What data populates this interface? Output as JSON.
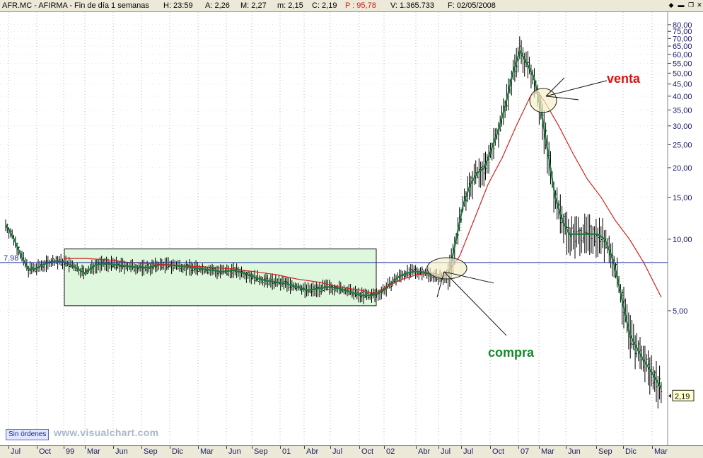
{
  "header": {
    "title": "AFR.MC - AFIRMA - Fin de día 1 semanas",
    "h": "H: 23:59",
    "a": "A: 2,26",
    "max": "M: 2,27",
    "min": "m: 2,15",
    "close": "C: 2,19",
    "p": "P : 95,78",
    "vol": "V: 1.365.733",
    "date": "F: 02/05/2008"
  },
  "footer": {
    "orders_label": "Sin órdenes",
    "brand": "www.visualchart.com"
  },
  "colors": {
    "price_bars": "#000000",
    "fast_ma": "#1a7a3a",
    "slow_ma": "#d42020",
    "hline": "#1f2f9a",
    "box_fill": "#dff7dc",
    "box_stroke": "#1a1a1a",
    "venta": "#e01010",
    "compra": "#128a28",
    "axis_text": "#1a1a6b"
  },
  "chart_data": {
    "type": "line",
    "yscale": "log",
    "ylim": [
      1.75,
      85
    ],
    "yticks": [
      "80,00",
      "75,00",
      "70,00",
      "65,00",
      "60,00",
      "55,00",
      "50,00",
      "45,00",
      "40,00",
      "35,00",
      "30,00",
      "25,00",
      "20,00",
      "15,00",
      "10,00",
      "5,00"
    ],
    "ytick_values": [
      80,
      75,
      70,
      65,
      60,
      55,
      50,
      45,
      40,
      35,
      30,
      25,
      20,
      15,
      10,
      5
    ],
    "hline": {
      "value": 7.98,
      "label": "7.98"
    },
    "last_value": {
      "value": 2.19,
      "label": "2,19"
    },
    "xticks": [
      "Jul",
      "Oct",
      "99",
      "Mar",
      "Jun",
      "Sep",
      "Dic",
      "Mar",
      "Jun",
      "Sep",
      "01",
      "Abr",
      "Jul",
      "Oct",
      "02",
      "Abr",
      "Jul",
      "Jul",
      "Oct",
      "07",
      "Mar",
      "Jun",
      "Sep",
      "Dic",
      "Mar"
    ],
    "range_box": {
      "from": "Mar 99",
      "to": "Oct 01",
      "low": 5.25,
      "high": 9.1
    },
    "annotations": [
      {
        "text": "venta",
        "value": 40,
        "date": "May 07"
      },
      {
        "text": "compra",
        "value": 7.6,
        "date": "Jul"
      }
    ],
    "series": [
      {
        "name": "",
        "role": "fast_ma",
        "x": [
          8,
          20,
          30,
          40,
          50,
          60,
          70,
          80,
          90,
          100,
          110,
          120,
          135,
          150,
          165,
          180,
          195,
          210,
          225,
          240,
          255,
          270,
          285,
          300,
          315,
          330,
          345,
          360,
          375,
          390,
          405,
          420,
          435,
          450,
          465,
          480,
          495,
          510,
          525,
          535,
          545,
          555,
          565,
          575,
          585,
          595,
          605,
          615,
          625,
          635,
          645,
          655,
          665,
          675,
          685,
          695,
          705,
          715,
          725,
          735,
          745,
          755,
          765,
          775,
          785,
          795,
          805,
          815,
          825,
          835,
          845,
          855,
          865,
          870,
          880,
          890,
          900,
          910,
          920,
          930,
          935
        ],
        "values": [
          11.5,
          10,
          8.5,
          7.5,
          7.5,
          7.8,
          8.0,
          8.1,
          8.0,
          7.8,
          7.5,
          7.2,
          7.8,
          7.9,
          7.8,
          7.7,
          7.6,
          7.6,
          7.8,
          7.8,
          7.7,
          7.6,
          7.5,
          7.4,
          7.3,
          7.4,
          7.2,
          6.9,
          6.7,
          6.6,
          6.5,
          6.3,
          6.1,
          6.2,
          6.3,
          6.2,
          6.0,
          5.8,
          5.8,
          5.9,
          6.2,
          6.6,
          7.0,
          7.2,
          7.3,
          7.3,
          7.2,
          7.0,
          6.9,
          7.2,
          10,
          14,
          17,
          19,
          20,
          24,
          29,
          37,
          50,
          62,
          55,
          48,
          35,
          23,
          15,
          12,
          10.5,
          10.5,
          10.5,
          10.5,
          10.5,
          10,
          8.5,
          7.5,
          5.5,
          4.0,
          3.5,
          3.1,
          2.8,
          2.5,
          2.35
        ]
      },
      {
        "name": "",
        "role": "slow_ma",
        "x": [
          90,
          120,
          150,
          180,
          210,
          240,
          270,
          300,
          330,
          360,
          390,
          420,
          450,
          480,
          510,
          530,
          550,
          570,
          590,
          610,
          630,
          650,
          670,
          690,
          710,
          730,
          750,
          760,
          770,
          790,
          810,
          830,
          850,
          870,
          890,
          910,
          935
        ],
        "values": [
          8.3,
          8.3,
          8.2,
          8.0,
          7.9,
          7.8,
          7.7,
          7.6,
          7.5,
          7.3,
          7.1,
          6.8,
          6.6,
          6.3,
          6.1,
          5.9,
          6.4,
          6.8,
          7.1,
          7.2,
          7.0,
          8.5,
          12,
          17,
          22,
          30,
          40,
          42,
          38,
          30,
          23,
          18,
          15,
          12,
          10,
          8,
          5.7
        ]
      }
    ]
  }
}
